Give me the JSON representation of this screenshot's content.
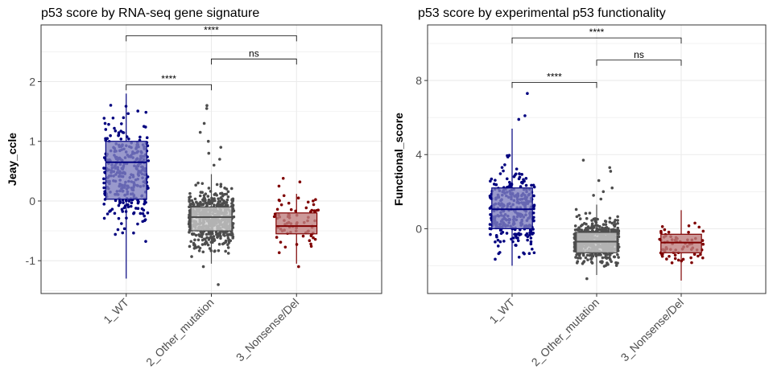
{
  "chart_data": [
    {
      "type": "box",
      "title": "p53 score by RNA-seq gene signature",
      "xlabel": "",
      "ylabel": "Jeay_ccle",
      "categories": [
        "1_WT",
        "2_Other_mutation",
        "3_Nonsense/Del"
      ],
      "ylim": [
        -1.55,
        2.95
      ],
      "yticks": [
        -1,
        0,
        1,
        2
      ],
      "ytick_labels": [
        "-1",
        "0",
        "1",
        "2"
      ],
      "grid": true,
      "colors": [
        "#00007f",
        "#4d4d4d",
        "#7f0000"
      ],
      "box_fill_colors": [
        "#7f7fbf",
        "#cccccc",
        "#bf7f7f"
      ],
      "boxes": [
        {
          "category": "1_WT",
          "whisker_low": -1.3,
          "q1": 0.03,
          "median": 0.65,
          "q3": 1.0,
          "whisker_high": 1.8
        },
        {
          "category": "2_Other_mutation",
          "whisker_low": -1.05,
          "q1": -0.5,
          "median": -0.27,
          "q3": -0.1,
          "whisker_high": 0.45
        },
        {
          "category": "3_Nonsense/Del",
          "whisker_low": -1.05,
          "q1": -0.55,
          "median": -0.42,
          "q3": -0.2,
          "whisker_high": 0.12
        }
      ],
      "outliers": [
        {
          "category": "2_Other_mutation",
          "values": [
            1.6,
            1.55,
            1.3,
            1.15,
            1.0,
            0.9,
            0.8,
            0.7,
            0.6,
            -1.1,
            -1.4
          ]
        },
        {
          "category": "3_Nonsense/Del",
          "values": [
            0.38,
            0.32,
            0.25,
            -1.1
          ]
        }
      ],
      "comparisons": [
        {
          "from": "1_WT",
          "to": "2_Other_mutation",
          "y": 1.95,
          "label": "****"
        },
        {
          "from": "2_Other_mutation",
          "to": "3_Nonsense/Del",
          "y": 2.38,
          "label": "ns"
        },
        {
          "from": "1_WT",
          "to": "3_Nonsense/Del",
          "y": 2.77,
          "label": "****"
        }
      ],
      "n_points": [
        330,
        580,
        70
      ],
      "point_spread": [
        {
          "mean": 0.5,
          "sd": 0.6
        },
        {
          "mean": -0.28,
          "sd": 0.33
        },
        {
          "mean": -0.38,
          "sd": 0.28
        }
      ]
    },
    {
      "type": "box",
      "title": "p53 score by experimental p53 functionality",
      "xlabel": "",
      "ylabel": "Functional_score",
      "categories": [
        "1_WT",
        "2_Other_mutation",
        "3_Nonsense/Del"
      ],
      "ylim": [
        -3.5,
        11.0
      ],
      "yticks": [
        0,
        4,
        8
      ],
      "ytick_labels": [
        "0",
        "4",
        "8"
      ],
      "grid": true,
      "colors": [
        "#00007f",
        "#4d4d4d",
        "#7f0000"
      ],
      "box_fill_colors": [
        "#7f7fbf",
        "#cccccc",
        "#bf7f7f"
      ],
      "boxes": [
        {
          "category": "1_WT",
          "whisker_low": -2.0,
          "q1": 0.0,
          "median": 1.05,
          "q3": 2.2,
          "whisker_high": 5.4
        },
        {
          "category": "2_Other_mutation",
          "whisker_low": -2.5,
          "q1": -1.3,
          "median": -0.7,
          "q3": -0.2,
          "whisker_high": 1.3
        },
        {
          "category": "3_Nonsense/Del",
          "whisker_low": -2.8,
          "q1": -1.3,
          "median": -0.75,
          "q3": -0.3,
          "whisker_high": 1.0
        }
      ],
      "outliers": [
        {
          "category": "1_WT",
          "values": [
            7.3,
            6.1,
            5.9
          ]
        },
        {
          "category": "2_Other_mutation",
          "values": [
            3.7,
            3.3,
            3.1,
            2.6,
            2.2,
            2.0,
            1.8,
            1.6,
            -2.7
          ]
        }
      ],
      "comparisons": [
        {
          "from": "1_WT",
          "to": "2_Other_mutation",
          "y": 7.9,
          "label": "****"
        },
        {
          "from": "2_Other_mutation",
          "to": "3_Nonsense/Del",
          "y": 9.1,
          "label": "ns"
        },
        {
          "from": "1_WT",
          "to": "3_Nonsense/Del",
          "y": 10.3,
          "label": "****"
        }
      ],
      "n_points": [
        330,
        580,
        70
      ],
      "point_spread": [
        {
          "mean": 1.1,
          "sd": 1.45
        },
        {
          "mean": -0.7,
          "sd": 0.75
        },
        {
          "mean": -0.8,
          "sd": 0.65
        }
      ]
    }
  ]
}
